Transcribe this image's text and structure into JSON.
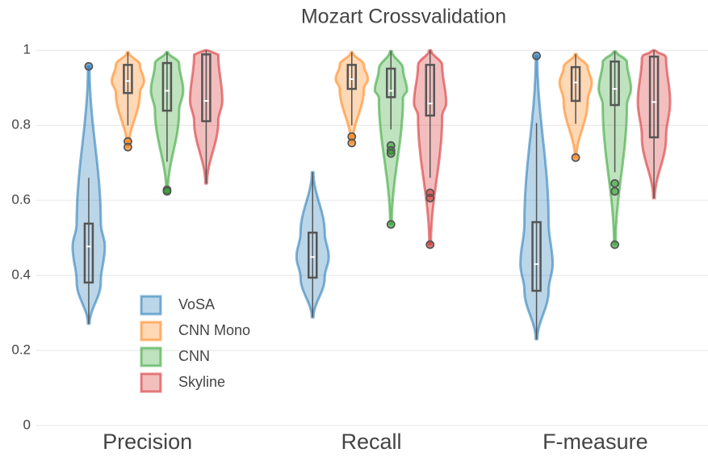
{
  "chart_data": {
    "type": "violin",
    "title": "Mozart Crossvalidation",
    "categories": [
      "Precision",
      "Recall",
      "F-measure"
    ],
    "series": [
      {
        "name": "VoSA",
        "color": "#1f77b4",
        "stats": [
          {
            "whisker_low": 0.271,
            "q1": 0.381,
            "median": 0.477,
            "q3": 0.538,
            "whisker_high": 0.66,
            "outliers": [
              0.957
            ]
          },
          {
            "whisker_low": 0.288,
            "q1": 0.394,
            "median": 0.449,
            "q3": 0.514,
            "whisker_high": 0.675,
            "outliers": []
          },
          {
            "whisker_low": 0.23,
            "q1": 0.359,
            "median": 0.43,
            "q3": 0.542,
            "whisker_high": 0.806,
            "outliers": [
              0.985
            ]
          }
        ]
      },
      {
        "name": "CNN Mono",
        "color": "#ff7f0e",
        "stats": [
          {
            "whisker_low": 0.8,
            "q1": 0.886,
            "median": 0.918,
            "q3": 0.961,
            "whisker_high": 0.995,
            "outliers": [
              0.757,
              0.742
            ]
          },
          {
            "whisker_low": 0.8,
            "q1": 0.897,
            "median": 0.923,
            "q3": 0.961,
            "whisker_high": 0.995,
            "outliers": [
              0.77,
              0.753
            ]
          },
          {
            "whisker_low": 0.804,
            "q1": 0.865,
            "median": 0.914,
            "q3": 0.955,
            "whisker_high": 0.99,
            "outliers": [
              0.714
            ]
          }
        ]
      },
      {
        "name": "CNN",
        "color": "#2ca02c",
        "stats": [
          {
            "whisker_low": 0.703,
            "q1": 0.839,
            "median": 0.892,
            "q3": 0.966,
            "whisker_high": 0.995,
            "outliers": [
              0.628,
              0.624
            ]
          },
          {
            "whisker_low": 0.789,
            "q1": 0.875,
            "median": 0.892,
            "q3": 0.951,
            "whisker_high": 0.998,
            "outliers": [
              0.746,
              0.733,
              0.725,
              0.536
            ]
          },
          {
            "whisker_low": 0.675,
            "q1": 0.854,
            "median": 0.897,
            "q3": 0.97,
            "whisker_high": 0.997,
            "outliers": [
              0.645,
              0.624,
              0.482
            ]
          }
        ]
      },
      {
        "name": "Skyline",
        "color": "#d62728",
        "stats": [
          {
            "whisker_low": 0.645,
            "q1": 0.811,
            "median": 0.865,
            "q3": 0.989,
            "whisker_high": 1.0,
            "outliers": []
          },
          {
            "whisker_low": 0.66,
            "q1": 0.826,
            "median": 0.858,
            "q3": 0.961,
            "whisker_high": 1.0,
            "outliers": [
              0.62,
              0.606,
              0.482
            ]
          },
          {
            "whisker_low": 0.606,
            "q1": 0.768,
            "median": 0.862,
            "q3": 0.983,
            "whisker_high": 1.0,
            "outliers": []
          }
        ]
      }
    ],
    "ylim": [
      0,
      1.05
    ],
    "yticks": [
      0,
      0.2,
      0.4,
      0.6,
      0.8,
      1
    ],
    "grid": true,
    "legend": "lower left"
  }
}
